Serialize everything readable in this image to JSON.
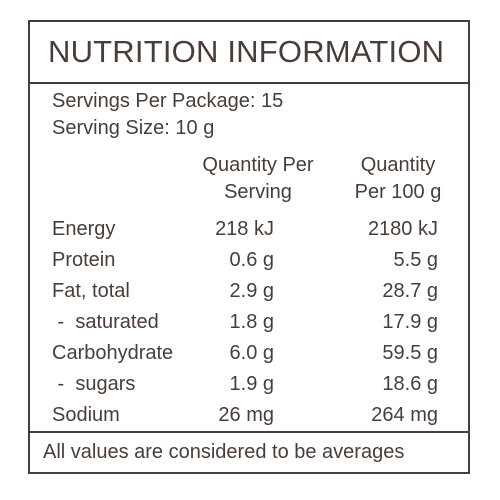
{
  "panel": {
    "title": "NUTRITION INFORMATION",
    "servings_per_package": "Servings Per Package: 15",
    "serving_size": "Serving Size: 10 g",
    "columns": {
      "per_serving_line1": "Quantity Per",
      "per_serving_line2": "Serving",
      "per_100g_line1": "Quantity",
      "per_100g_line2": "Per 100 g"
    },
    "rows": [
      {
        "name": "Energy",
        "per_serving": "218 kJ",
        "per_100g": "2180 kJ"
      },
      {
        "name": "Protein",
        "per_serving": "0.6 g",
        "per_100g": "5.5 g"
      },
      {
        "name": "Fat, total",
        "per_serving": "2.9 g",
        "per_100g": "28.7 g"
      },
      {
        "name": " -  saturated",
        "per_serving": "1.8 g",
        "per_100g": "17.9 g"
      },
      {
        "name": "Carbohydrate",
        "per_serving": "6.0 g",
        "per_100g": "59.5 g"
      },
      {
        "name": " -  sugars",
        "per_serving": "1.9 g",
        "per_100g": "18.6 g"
      },
      {
        "name": "Sodium",
        "per_serving": "26 mg",
        "per_100g": "264 mg"
      }
    ],
    "footer": "All values are considered to be averages"
  }
}
